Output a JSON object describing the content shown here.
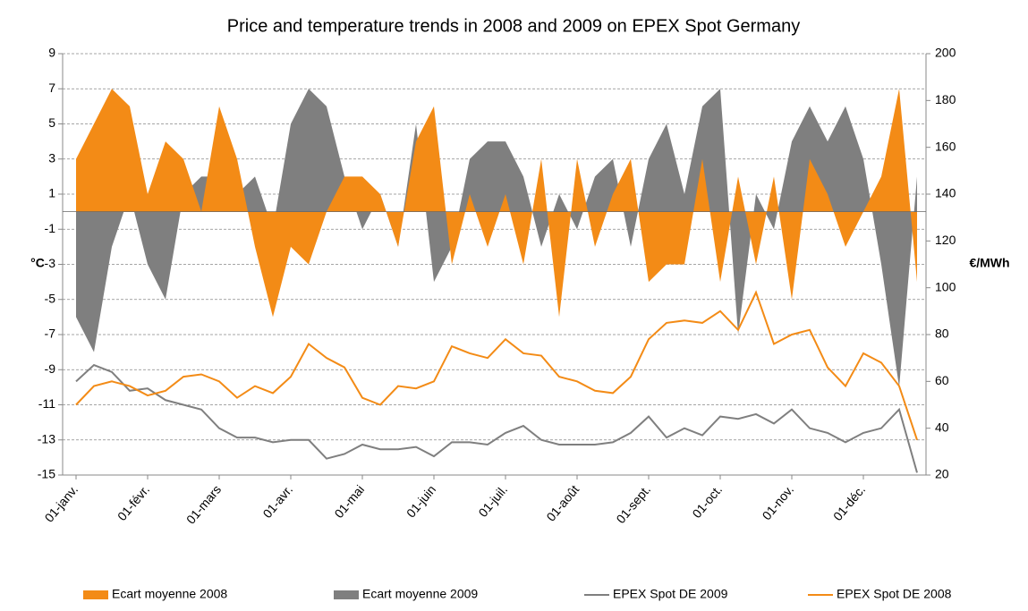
{
  "chart_data": {
    "type": "combo",
    "title": "Price and temperature trends in 2008 and 2009 on EPEX Spot Germany",
    "y_label": "°C",
    "y2_label": "€/MWh",
    "categories": [
      "01-janv.",
      null,
      null,
      null,
      "01-févr.",
      null,
      null,
      null,
      "01-mars",
      null,
      null,
      null,
      "01-avr.",
      null,
      null,
      null,
      "01-mai",
      null,
      null,
      null,
      "01-juin",
      null,
      null,
      null,
      "01-juil.",
      null,
      null,
      null,
      "01-août",
      null,
      null,
      null,
      "01-sept.",
      null,
      null,
      null,
      "01-oct.",
      null,
      null,
      null,
      "01-nov.",
      null,
      null,
      null,
      "01-déc.",
      null,
      null,
      null
    ],
    "ylim": [
      -15,
      9
    ],
    "yticks": [
      -15,
      -13,
      -11,
      -9,
      -7,
      -5,
      -3,
      -1,
      1,
      3,
      5,
      7,
      9
    ],
    "y2lim": [
      20,
      200
    ],
    "y2ticks": [
      20,
      40,
      60,
      80,
      100,
      120,
      140,
      160,
      180,
      200
    ],
    "grid": true,
    "series": [
      {
        "name": "Ecart moyenne 2008",
        "mark": "area",
        "color": "#f38b16",
        "values": [
          3,
          5,
          7,
          6,
          1,
          4,
          3,
          0,
          6,
          3,
          -2,
          -6,
          -2,
          -3,
          0,
          2,
          2,
          1,
          -2,
          4,
          6,
          -3,
          1,
          -2,
          1,
          -3,
          3,
          -6,
          3,
          -2,
          1,
          3,
          -4,
          -3,
          -3,
          3,
          -4,
          2,
          -3,
          2,
          -5,
          3,
          1,
          -2,
          0,
          2,
          7,
          -4
        ]
      },
      {
        "name": "Ecart moyenne 2009",
        "mark": "area",
        "color": "#7f7f7f",
        "values": [
          -6,
          -8,
          -2,
          1,
          -3,
          -5,
          1,
          2,
          2,
          1,
          2,
          -1,
          5,
          7,
          6,
          2,
          -1,
          1,
          -2,
          5,
          -4,
          -2,
          3,
          4,
          4,
          2,
          -2,
          1,
          -1,
          2,
          3,
          -2,
          3,
          5,
          1,
          6,
          7,
          -7,
          1,
          -1,
          4,
          6,
          4,
          6,
          3,
          -3,
          -10,
          2
        ]
      },
      {
        "name": "EPEX Spot DE 2009",
        "mark": "line",
        "axis": "y2",
        "color": "#7f7f7f",
        "values": [
          60,
          67,
          64,
          56,
          57,
          52,
          50,
          48,
          40,
          36,
          36,
          34,
          35,
          35,
          27,
          29,
          33,
          31,
          31,
          32,
          28,
          34,
          34,
          33,
          38,
          41,
          35,
          33,
          33,
          33,
          34,
          38,
          45,
          36,
          40,
          37,
          45,
          44,
          46,
          42,
          48,
          40,
          38,
          34,
          38,
          40,
          48,
          21
        ]
      },
      {
        "name": "EPEX Spot DE 2008",
        "mark": "line",
        "axis": "y2",
        "color": "#f38b16",
        "values": [
          50,
          58,
          60,
          58,
          54,
          56,
          62,
          63,
          60,
          53,
          58,
          55,
          62,
          76,
          70,
          66,
          53,
          50,
          58,
          57,
          60,
          75,
          72,
          70,
          78,
          72,
          71,
          62,
          60,
          56,
          55,
          62,
          78,
          85,
          86,
          85,
          90,
          82,
          98,
          76,
          80,
          82,
          66,
          58,
          72,
          68,
          58,
          35
        ]
      }
    ]
  }
}
